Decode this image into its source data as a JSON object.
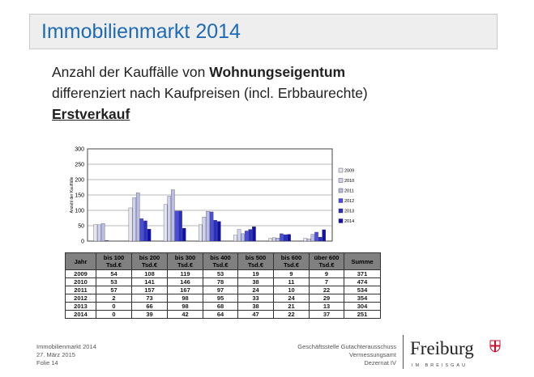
{
  "title": "Immobilienmarkt 2014",
  "heading": {
    "line1_prefix": "Anzahl der Kauffälle von ",
    "line1_bold": "Wohnungseigentum",
    "line2": "differenziert nach Kaufpreisen (incl. Erbbaurechte)",
    "line3": "Erstverkauf"
  },
  "chart_data": {
    "type": "bar",
    "ylabel": "Anzahl der Kauffälle",
    "ylim": [
      0,
      300
    ],
    "yticks": [
      0,
      50,
      100,
      150,
      200,
      250,
      300
    ],
    "grid": true,
    "legend_position": "right",
    "categories": [
      "bis 100 Tsd.€",
      "bis 200 Tsd.€",
      "bis 300 Tsd.€",
      "bis 400 Tsd.€",
      "bis 500 Tsd.€",
      "bis 600 Tsd.€",
      "über 600 Tsd.€"
    ],
    "series": [
      {
        "name": "2009",
        "values": [
          54,
          108,
          119,
          53,
          19,
          9,
          9
        ]
      },
      {
        "name": "2010",
        "values": [
          53,
          141,
          146,
          78,
          38,
          11,
          7
        ]
      },
      {
        "name": "2011",
        "values": [
          57,
          157,
          167,
          97,
          24,
          10,
          22
        ]
      },
      {
        "name": "2012",
        "values": [
          2,
          73,
          98,
          95,
          33,
          24,
          29
        ]
      },
      {
        "name": "2013",
        "values": [
          0,
          66,
          98,
          68,
          38,
          21,
          13
        ]
      },
      {
        "name": "2014",
        "values": [
          0,
          39,
          42,
          64,
          47,
          22,
          37
        ]
      }
    ],
    "series_colors": [
      "#e6e6f2",
      "#cfd2ee",
      "#b9bce6",
      "#4a4ee0",
      "#2a2ec8",
      "#1010b0"
    ]
  },
  "table": {
    "headers": [
      "Jahr",
      "bis 100 Tsd.€",
      "bis 200 Tsd.€",
      "bis 300 Tsd.€",
      "bis 400 Tsd.€",
      "bis 500 Tsd.€",
      "bis 600 Tsd.€",
      "über 600 Tsd.€",
      "Summe"
    ],
    "rows": [
      [
        "2009",
        "54",
        "108",
        "119",
        "53",
        "19",
        "9",
        "9",
        "371"
      ],
      [
        "2010",
        "53",
        "141",
        "146",
        "78",
        "38",
        "11",
        "7",
        "474"
      ],
      [
        "2011",
        "57",
        "157",
        "167",
        "97",
        "24",
        "10",
        "22",
        "534"
      ],
      [
        "2012",
        "2",
        "73",
        "98",
        "95",
        "33",
        "24",
        "29",
        "354"
      ],
      [
        "2013",
        "0",
        "66",
        "98",
        "68",
        "38",
        "21",
        "13",
        "304"
      ],
      [
        "2014",
        "0",
        "39",
        "42",
        "64",
        "47",
        "22",
        "37",
        "251"
      ]
    ]
  },
  "footer": {
    "left": [
      "Immobilienmarkt 2014",
      "27. März 2015",
      "Folie 14"
    ],
    "right": [
      "Geschäftsstelle Gutachterausschuss",
      "Vermessungsamt",
      "Dezernat IV"
    ]
  },
  "logo": {
    "word": "Freiburg",
    "sub": "IM BREISGAU"
  }
}
